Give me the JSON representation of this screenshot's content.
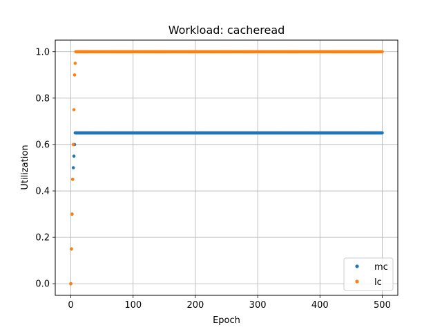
{
  "chart_data": {
    "type": "scatter",
    "title": "Workload: cacheread",
    "xlabel": "Epoch",
    "ylabel": "Utilization",
    "xlim": [
      -25,
      525
    ],
    "ylim": [
      -0.05,
      1.05
    ],
    "xticks": [
      0,
      100,
      200,
      300,
      400,
      500
    ],
    "yticks": [
      0.0,
      0.2,
      0.4,
      0.6,
      0.8,
      1.0
    ],
    "xtick_labels": [
      "0",
      "100",
      "200",
      "300",
      "400",
      "500"
    ],
    "ytick_labels": [
      "0.0",
      "0.2",
      "0.4",
      "0.6",
      "0.8",
      "1.0"
    ],
    "grid": true,
    "legend_position": "lower-right",
    "series": [
      {
        "name": "mc",
        "color": "#1f77b4",
        "points": [
          [
            0,
            0.0
          ],
          [
            1,
            0.15
          ],
          [
            2,
            0.3
          ],
          [
            3,
            0.45
          ],
          [
            4,
            0.5
          ],
          [
            5,
            0.55
          ],
          [
            6,
            0.6
          ]
        ],
        "plateau": {
          "x_start": 7,
          "x_end": 500,
          "y": 0.65
        }
      },
      {
        "name": "lc",
        "color": "#ff7f0e",
        "points": [
          [
            0,
            0.0
          ],
          [
            1,
            0.15
          ],
          [
            2,
            0.3
          ],
          [
            3,
            0.45
          ],
          [
            4,
            0.6
          ],
          [
            5,
            0.75
          ],
          [
            6,
            0.9
          ],
          [
            7,
            0.95
          ]
        ],
        "plateau": {
          "x_start": 8,
          "x_end": 500,
          "y": 1.0
        }
      }
    ]
  }
}
